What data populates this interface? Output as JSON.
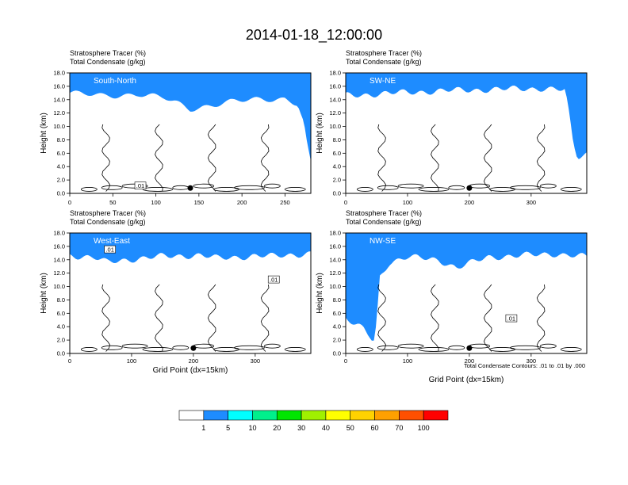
{
  "title": "2014-01-18_12:00:00",
  "panel_subtitles": [
    "Stratosphere Tracer   (%)",
    "Total Condensate   (g/kg)"
  ],
  "y_axis_label": "Height (km)",
  "x_axis_label": "Grid Point (dx=15km)",
  "contour_note": "Total Condensate Contours: .01 to .01 by .000",
  "contour_label": ".01",
  "colors": {
    "palette": [
      "#ffffff",
      "#1e8cff",
      "#00ffff",
      "#00f08c",
      "#00e600",
      "#a0f000",
      "#ffff00",
      "#ffd200",
      "#ffa000",
      "#ff5000",
      "#ff0000"
    ]
  },
  "chart_data": [
    {
      "type": "heatmap",
      "label": "South-North",
      "xlim": [
        0,
        280
      ],
      "ylim": [
        0,
        18
      ],
      "x_ticks": [
        "0",
        "50",
        "100",
        "150",
        "200",
        "250"
      ],
      "y_ticks": [
        "0.0",
        "2.0",
        "4.0",
        "6.0",
        "8.0",
        "10.0",
        "12.0",
        "14.0",
        "16.0",
        "18.0"
      ],
      "grid": false,
      "tropopause_height_km": [
        [
          0,
          15.6
        ],
        [
          40,
          15.1
        ],
        [
          80,
          15.5
        ],
        [
          110,
          14.8
        ],
        [
          140,
          13.2
        ],
        [
          180,
          14.2
        ],
        [
          220,
          14.6
        ],
        [
          250,
          14.8
        ],
        [
          265,
          14.0
        ],
        [
          272,
          11.0
        ],
        [
          276,
          7.5
        ],
        [
          280,
          5.0
        ]
      ],
      "marker_point": [
        140,
        0.8
      ],
      "contour_labels": [
        [
          82,
          1.1
        ]
      ]
    },
    {
      "type": "heatmap",
      "label": "SW-NE",
      "xlim": [
        0,
        390
      ],
      "ylim": [
        0,
        18
      ],
      "x_ticks": [
        "0",
        "100",
        "200",
        "300"
      ],
      "y_ticks": [
        "0.0",
        "2.0",
        "4.0",
        "6.0",
        "8.0",
        "10.0",
        "12.0",
        "14.0",
        "16.0",
        "18.0"
      ],
      "grid": false,
      "tropopause_height_km": [
        [
          0,
          15.2
        ],
        [
          40,
          15.4
        ],
        [
          80,
          15.6
        ],
        [
          150,
          15.9
        ],
        [
          220,
          16.1
        ],
        [
          320,
          16.3
        ],
        [
          355,
          16.0
        ],
        [
          362,
          12.0
        ],
        [
          368,
          8.0
        ],
        [
          375,
          6.0
        ],
        [
          390,
          6.6
        ]
      ],
      "marker_point": [
        200,
        0.8
      ],
      "contour_labels": []
    },
    {
      "type": "heatmap",
      "label": "West-East",
      "xlim": [
        0,
        390
      ],
      "ylim": [
        0,
        18
      ],
      "x_ticks": [
        "0",
        "100",
        "200",
        "300"
      ],
      "y_ticks": [
        "0.0",
        "2.0",
        "4.0",
        "6.0",
        "8.0",
        "10.0",
        "12.0",
        "14.0",
        "16.0",
        "18.0"
      ],
      "grid": false,
      "tropopause_height_km": [
        [
          0,
          15.3
        ],
        [
          40,
          14.9
        ],
        [
          60,
          14.2
        ],
        [
          90,
          14.6
        ],
        [
          150,
          15.1
        ],
        [
          210,
          15.3
        ],
        [
          240,
          14.8
        ],
        [
          300,
          15.2
        ],
        [
          330,
          15.1
        ],
        [
          390,
          15.6
        ]
      ],
      "marker_point": [
        200,
        0.8
      ],
      "contour_labels": [
        [
          65,
          15.5
        ],
        [
          330,
          11.0
        ]
      ]
    },
    {
      "type": "heatmap",
      "label": "NW-SE",
      "xlim": [
        0,
        390
      ],
      "ylim": [
        0,
        18
      ],
      "x_ticks": [
        "0",
        "100",
        "200",
        "300"
      ],
      "y_ticks": [
        "0.0",
        "2.0",
        "4.0",
        "6.0",
        "8.0",
        "10.0",
        "12.0",
        "14.0",
        "16.0",
        "18.0"
      ],
      "grid": false,
      "tropopause_height_km": [
        [
          0,
          6.0
        ],
        [
          15,
          4.8
        ],
        [
          30,
          4.2
        ],
        [
          40,
          3.0
        ],
        [
          45,
          2.2
        ],
        [
          50,
          5.0
        ],
        [
          55,
          12.0
        ],
        [
          70,
          14.2
        ],
        [
          100,
          15.0
        ],
        [
          150,
          14.6
        ],
        [
          180,
          13.4
        ],
        [
          230,
          15.0
        ],
        [
          300,
          15.3
        ],
        [
          340,
          15.5
        ],
        [
          390,
          15.0
        ]
      ],
      "marker_point": [
        200,
        0.8
      ],
      "contour_labels": [
        [
          268,
          5.2
        ]
      ]
    }
  ],
  "colorbar": {
    "labels": [
      "1",
      "5",
      "10",
      "20",
      "30",
      "40",
      "50",
      "60",
      "70",
      "100"
    ],
    "colors": [
      "#ffffff",
      "#1e8cff",
      "#00ffff",
      "#00f08c",
      "#00e600",
      "#a0f000",
      "#ffff00",
      "#ffd200",
      "#ffa000",
      "#ff5000",
      "#ff0000"
    ]
  }
}
